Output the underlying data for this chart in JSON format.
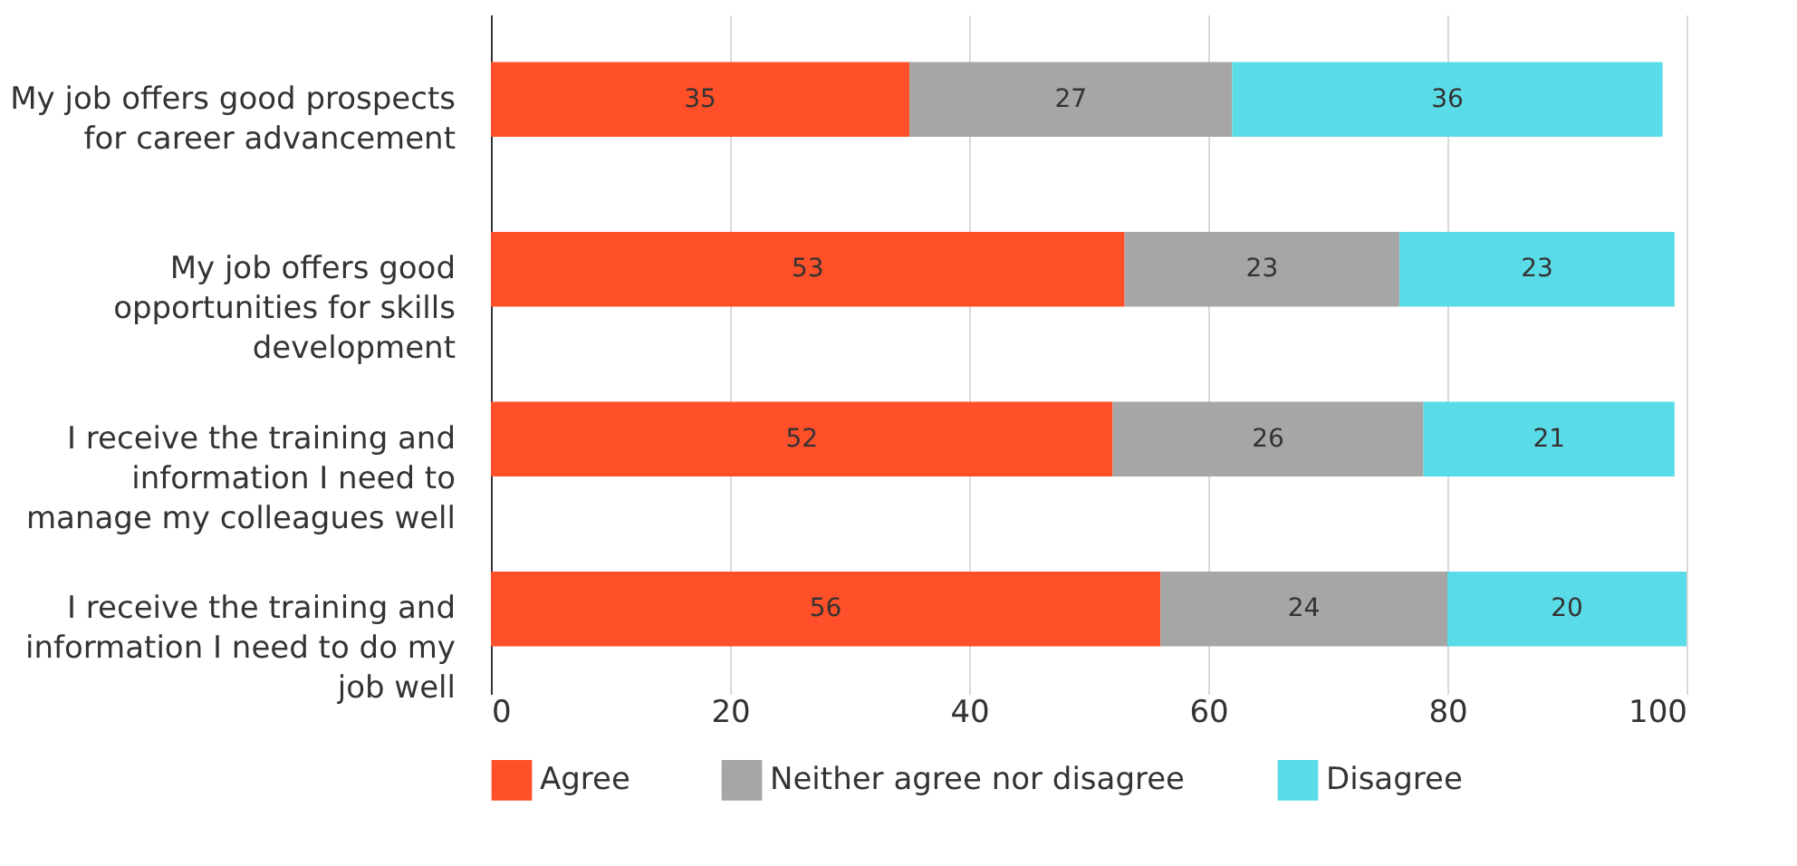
{
  "chart_data": {
    "type": "bar",
    "orientation": "horizontal",
    "stacked": true,
    "data_labels": true,
    "categories": [
      "My job offers good prospects\nfor career advancement",
      "My job offers good\nopportunities for skills\ndevelopment",
      "I receive the training and\ninformation I need to\nmanage my colleagues well",
      "I receive the training and\ninformation I need to do my\njob well"
    ],
    "series": [
      {
        "name": "Agree",
        "color": "#ff5029",
        "values": [
          35,
          53,
          52,
          56
        ]
      },
      {
        "name": "Neither agree nor disagree",
        "color": "#a6a6a6",
        "values": [
          27,
          23,
          26,
          24
        ]
      },
      {
        "name": "Disagree",
        "color": "#5adce8",
        "values": [
          36,
          23,
          21,
          20
        ]
      }
    ],
    "xlim": [
      0,
      100
    ],
    "xticks": [
      0,
      20,
      40,
      60,
      80,
      100
    ],
    "grid": "x",
    "legend": "bottom"
  }
}
